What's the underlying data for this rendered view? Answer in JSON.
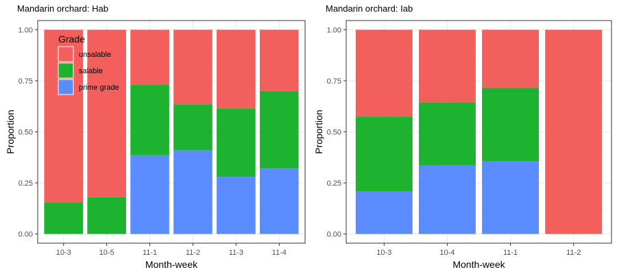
{
  "chart_data": [
    {
      "type": "bar",
      "stacked": true,
      "title": "Mandarin orchard: Hab",
      "xlabel": "Month-week",
      "ylabel": "Proportion",
      "ylim": [
        0,
        1
      ],
      "y_ticks": [
        "0.00",
        "0.25",
        "0.50",
        "0.75",
        "1.00"
      ],
      "categories": [
        "10-3",
        "10-5",
        "11-1",
        "11-2",
        "11-3",
        "11-4"
      ],
      "series": [
        {
          "name": "prime grade",
          "color": "#5b8cff",
          "values": [
            0.0,
            0.0,
            0.385,
            0.41,
            0.28,
            0.32
          ]
        },
        {
          "name": "salable",
          "color": "#1db22f",
          "values": [
            0.155,
            0.18,
            0.345,
            0.225,
            0.335,
            0.38
          ]
        },
        {
          "name": "unsalable",
          "color": "#f25f5c",
          "values": [
            0.845,
            0.82,
            0.27,
            0.365,
            0.385,
            0.3
          ]
        }
      ],
      "grid": true,
      "legend": {
        "title": "Grade",
        "placement": "top-left inside",
        "entries": [
          {
            "label": "unsalable",
            "color": "#f25f5c"
          },
          {
            "label": "salable",
            "color": "#1db22f"
          },
          {
            "label": "prime grade",
            "color": "#5b8cff"
          }
        ]
      }
    },
    {
      "type": "bar",
      "stacked": true,
      "title": "Mandarin orchard: Iab",
      "xlabel": "Month-week",
      "ylabel": "Proportion",
      "ylim": [
        0,
        1
      ],
      "y_ticks": [
        "0.00",
        "0.25",
        "0.50",
        "0.75",
        "1.00"
      ],
      "categories": [
        "10-3",
        "10-4",
        "11-1",
        "11-2"
      ],
      "series": [
        {
          "name": "prime grade",
          "color": "#5b8cff",
          "values": [
            0.21,
            0.335,
            0.355,
            0.0
          ]
        },
        {
          "name": "salable",
          "color": "#1db22f",
          "values": [
            0.365,
            0.31,
            0.36,
            0.0
          ]
        },
        {
          "name": "unsalable",
          "color": "#f25f5c",
          "values": [
            0.425,
            0.355,
            0.285,
            1.0
          ]
        }
      ],
      "grid": true
    }
  ]
}
